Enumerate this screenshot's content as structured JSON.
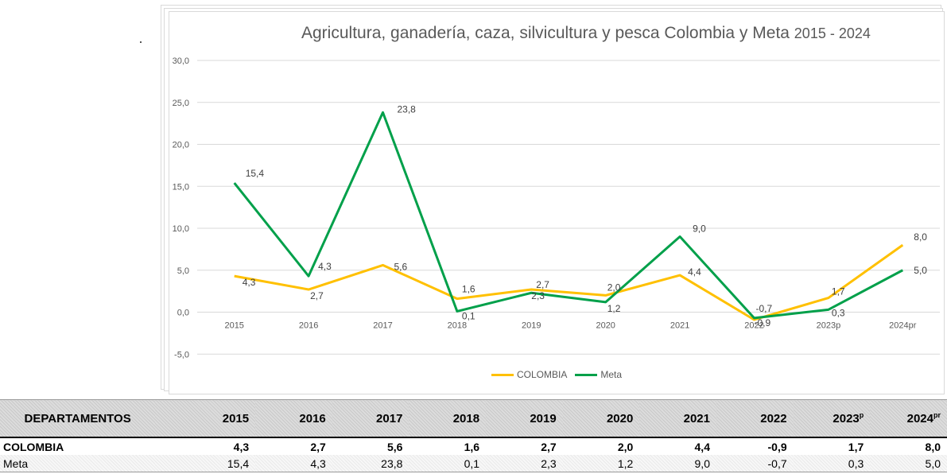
{
  "chart_data": {
    "type": "line",
    "title": "Agricultura, ganadería, caza, silvicultura y pesca Colombia y Meta",
    "title_years": "2015 - 2024",
    "categories": [
      "2015",
      "2016",
      "2017",
      "2018",
      "2019",
      "2020",
      "2021",
      "2022",
      "2023p",
      "2024pr"
    ],
    "ylim": [
      -5,
      30
    ],
    "yticks": [
      "-5,0",
      "0,0",
      "5,0",
      "10,0",
      "15,0",
      "20,0",
      "25,0",
      "30,0"
    ],
    "ytick_values": [
      -5,
      0,
      5,
      10,
      15,
      20,
      25,
      30
    ],
    "grid": true,
    "legend_position": "bottom",
    "series": [
      {
        "name": "COLOMBIA",
        "color": "#FFC000",
        "values": [
          4.3,
          2.7,
          5.6,
          1.6,
          2.7,
          2.0,
          4.4,
          -0.9,
          1.7,
          8.0
        ],
        "labels": [
          "4,3",
          "2,7",
          "5,6",
          "1,6",
          "2,7",
          "2,0",
          "4,4",
          "-0,9",
          "1,7",
          "8,0"
        ]
      },
      {
        "name": "Meta",
        "color": "#00A04A",
        "values": [
          15.4,
          4.3,
          23.8,
          0.1,
          2.3,
          1.2,
          9.0,
          -0.7,
          0.3,
          5.0
        ],
        "labels": [
          "15,4",
          "4,3",
          "23,8",
          "0,1",
          "2,3",
          "1,2",
          "9,0",
          "-0,7",
          "0,3",
          "5,0"
        ]
      }
    ]
  },
  "table": {
    "header_first": "DEPARTAMENTOS",
    "years": [
      "2015",
      "2016",
      "2017",
      "2018",
      "2019",
      "2020",
      "2021",
      "2022",
      "2023",
      "2024"
    ],
    "sup_2023": "p",
    "sup_2024": "pr",
    "rows": [
      {
        "name": "COLOMBIA",
        "values": [
          "4,3",
          "2,7",
          "5,6",
          "1,6",
          "2,7",
          "2,0",
          "4,4",
          "-0,9",
          "1,7",
          "8,0"
        ]
      },
      {
        "name": "Meta",
        "values": [
          "15,4",
          "4,3",
          "23,8",
          "0,1",
          "2,3",
          "1,2",
          "9,0",
          "-0,7",
          "0,3",
          "5,0"
        ]
      }
    ]
  }
}
